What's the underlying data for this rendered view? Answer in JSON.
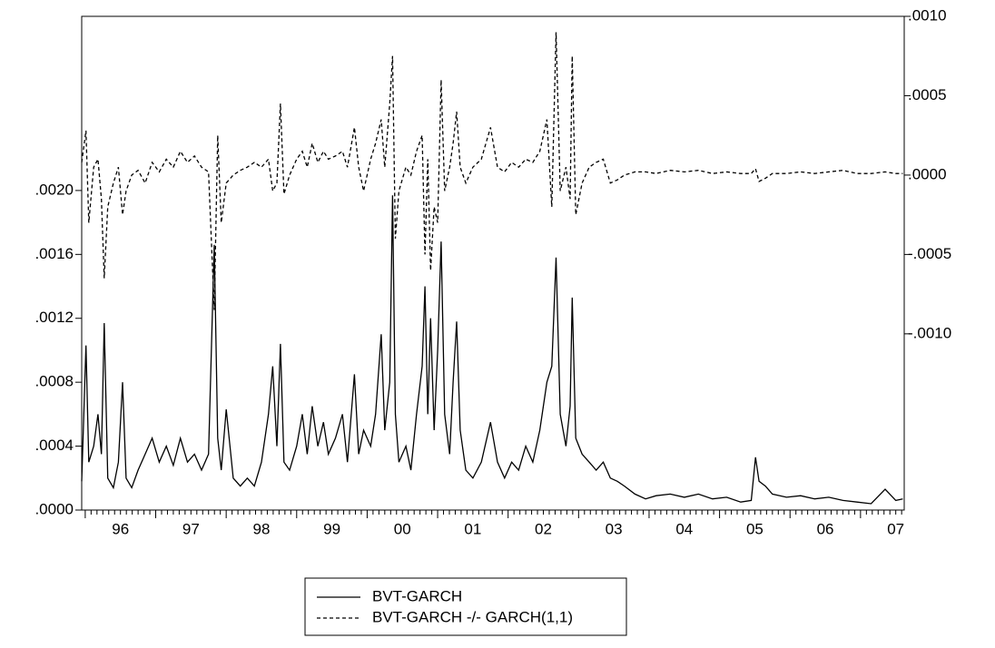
{
  "chart_data": {
    "type": "line",
    "x": [
      1995.95,
      1996.01,
      1996.05,
      1996.12,
      1996.18,
      1996.23,
      1996.27,
      1996.32,
      1996.4,
      1996.47,
      1996.53,
      1996.58,
      1996.66,
      1996.75,
      1996.85,
      1996.95,
      1997.05,
      1997.15,
      1997.25,
      1997.35,
      1997.45,
      1997.55,
      1997.65,
      1997.75,
      1997.83,
      1997.88,
      1997.93,
      1998.0,
      1998.1,
      1998.2,
      1998.3,
      1998.4,
      1998.5,
      1998.6,
      1998.66,
      1998.72,
      1998.77,
      1998.82,
      1998.9,
      1999.0,
      1999.08,
      1999.15,
      1999.22,
      1999.3,
      1999.38,
      1999.45,
      1999.55,
      1999.65,
      1999.72,
      1999.82,
      1999.88,
      1999.95,
      2000.05,
      2000.12,
      2000.2,
      2000.25,
      2000.32,
      2000.36,
      2000.4,
      2000.45,
      2000.55,
      2000.62,
      2000.7,
      2000.78,
      2000.82,
      2000.86,
      2000.9,
      2000.95,
      2001.0,
      2001.05,
      2001.1,
      2001.17,
      2001.22,
      2001.27,
      2001.32,
      2001.4,
      2001.5,
      2001.62,
      2001.75,
      2001.85,
      2001.95,
      2002.05,
      2002.15,
      2002.25,
      2002.35,
      2002.45,
      2002.55,
      2002.62,
      2002.68,
      2002.74,
      2002.82,
      2002.88,
      2002.91,
      2002.96,
      2003.05,
      2003.15,
      2003.25,
      2003.35,
      2003.45,
      2003.55,
      2003.65,
      2003.8,
      2003.95,
      2004.1,
      2004.3,
      2004.5,
      2004.7,
      2004.9,
      2005.1,
      2005.3,
      2005.45,
      2005.51,
      2005.56,
      2005.65,
      2005.75,
      2005.95,
      2006.15,
      2006.35,
      2006.55,
      2006.75,
      2006.95,
      2007.15,
      2007.35,
      2007.5,
      2007.6
    ],
    "series": [
      {
        "name": "BVT-GARCH",
        "color": "#000000",
        "dash": false,
        "axis": "y",
        "values": [
          0.00018,
          0.00103,
          0.0003,
          0.0004,
          0.0006,
          0.00035,
          0.00117,
          0.0002,
          0.00014,
          0.0003,
          0.0008,
          0.0002,
          0.00014,
          0.00025,
          0.00035,
          0.00045,
          0.0003,
          0.0004,
          0.00028,
          0.00045,
          0.0003,
          0.00035,
          0.00025,
          0.00035,
          0.00166,
          0.00045,
          0.00025,
          0.00063,
          0.0002,
          0.00015,
          0.0002,
          0.00015,
          0.0003,
          0.0006,
          0.0009,
          0.0004,
          0.00104,
          0.0003,
          0.00025,
          0.0004,
          0.0006,
          0.00035,
          0.00065,
          0.0004,
          0.00055,
          0.00035,
          0.00045,
          0.0006,
          0.0003,
          0.00085,
          0.00035,
          0.0005,
          0.0004,
          0.0006,
          0.0011,
          0.0005,
          0.0008,
          0.00197,
          0.0006,
          0.0003,
          0.0004,
          0.00025,
          0.0006,
          0.0009,
          0.0014,
          0.0006,
          0.0012,
          0.0005,
          0.001,
          0.00168,
          0.0006,
          0.00035,
          0.0008,
          0.00118,
          0.0005,
          0.00025,
          0.0002,
          0.0003,
          0.00055,
          0.0003,
          0.0002,
          0.0003,
          0.00025,
          0.0004,
          0.0003,
          0.0005,
          0.0008,
          0.0009,
          0.00158,
          0.0006,
          0.0004,
          0.00065,
          0.00133,
          0.00045,
          0.00035,
          0.0003,
          0.00025,
          0.0003,
          0.0002,
          0.00018,
          0.00015,
          0.0001,
          7e-05,
          9e-05,
          0.0001,
          8e-05,
          0.0001,
          7e-05,
          8e-05,
          5e-05,
          6e-05,
          0.00033,
          0.00018,
          0.00015,
          0.0001,
          8e-05,
          9e-05,
          7e-05,
          8e-05,
          6e-05,
          5e-05,
          4e-05,
          0.00013,
          6e-05,
          7e-05
        ]
      },
      {
        "name": "BVT-GARCH -/- GARCH(1,1)",
        "color": "#000000",
        "dash": true,
        "axis": "y2",
        "values": [
          8e-05,
          0.00028,
          -0.0003,
          5e-05,
          0.0001,
          -0.00015,
          -0.00065,
          -0.0002,
          -5e-05,
          5e-05,
          -0.00025,
          -0.0001,
          0.0,
          3e-05,
          -5e-05,
          8e-05,
          2e-05,
          0.0001,
          5e-05,
          0.00015,
          8e-05,
          0.00012,
          5e-05,
          2e-05,
          -0.00085,
          0.00025,
          -0.0003,
          -5e-05,
          0.0,
          3e-05,
          5e-05,
          8e-05,
          5e-05,
          0.0001,
          -0.0001,
          -5e-05,
          0.00045,
          -0.00012,
          0.0,
          0.0001,
          0.00015,
          5e-05,
          0.0002,
          8e-05,
          0.00015,
          0.0001,
          0.00012,
          0.00015,
          5e-05,
          0.0003,
          5e-05,
          -0.0001,
          0.0001,
          0.0002,
          0.00035,
          5e-05,
          0.00045,
          0.00075,
          -0.0004,
          -0.0001,
          5e-05,
          0.0,
          0.00015,
          0.00025,
          -0.0005,
          0.0001,
          -0.0006,
          -0.0002,
          -0.0003,
          0.0006,
          -0.0001,
          5e-05,
          0.0002,
          0.0004,
          5e-05,
          -5e-05,
          5e-05,
          0.0001,
          0.0003,
          5e-05,
          2e-05,
          8e-05,
          5e-05,
          0.0001,
          8e-05,
          0.00015,
          0.00035,
          -0.0002,
          0.0009,
          -0.0001,
          5e-05,
          -0.00015,
          0.00075,
          -0.00025,
          -5e-05,
          5e-05,
          8e-05,
          0.0001,
          -5e-05,
          -3e-05,
          0.0,
          2e-05,
          2e-05,
          1e-05,
          3e-05,
          2e-05,
          3e-05,
          1e-05,
          2e-05,
          1e-05,
          1e-05,
          4e-05,
          -4e-05,
          -2e-05,
          1e-05,
          1e-05,
          2e-05,
          1e-05,
          2e-05,
          3e-05,
          1e-05,
          1e-05,
          2e-05,
          1e-05,
          1e-05
        ]
      }
    ],
    "xlim": [
      1995.95,
      2007.62
    ],
    "xticks": [
      {
        "value": 1996.5,
        "label": "96"
      },
      {
        "value": 1997.5,
        "label": "97"
      },
      {
        "value": 1998.5,
        "label": "98"
      },
      {
        "value": 1999.5,
        "label": "99"
      },
      {
        "value": 2000.5,
        "label": "00"
      },
      {
        "value": 2001.5,
        "label": "01"
      },
      {
        "value": 2002.5,
        "label": "02"
      },
      {
        "value": 2003.5,
        "label": "03"
      },
      {
        "value": 2004.5,
        "label": "04"
      },
      {
        "value": 2005.5,
        "label": "05"
      },
      {
        "value": 2006.5,
        "label": "06"
      },
      {
        "value": 2007.5,
        "label": "07"
      }
    ],
    "ylim": [
      0,
      0.00309
    ],
    "yticks": [
      {
        "value": 0,
        "label": ".0000"
      },
      {
        "value": 0.0004,
        "label": ".0004"
      },
      {
        "value": 0.0008,
        "label": ".0008"
      },
      {
        "value": 0.0012,
        "label": ".0012"
      },
      {
        "value": 0.0016,
        "label": ".0016"
      },
      {
        "value": 0.002,
        "label": ".0020"
      }
    ],
    "y2lim": [
      -0.00211,
      0.001
    ],
    "y2ticks": [
      {
        "value": 0.001,
        "label": ".0010"
      },
      {
        "value": 0.0005,
        "label": ".0005"
      },
      {
        "value": 0,
        "label": ".0000"
      },
      {
        "value": -0.0005,
        "label": "-.0005"
      },
      {
        "value": -0.001,
        "label": "-.0010"
      }
    ],
    "legend": "bottom"
  }
}
